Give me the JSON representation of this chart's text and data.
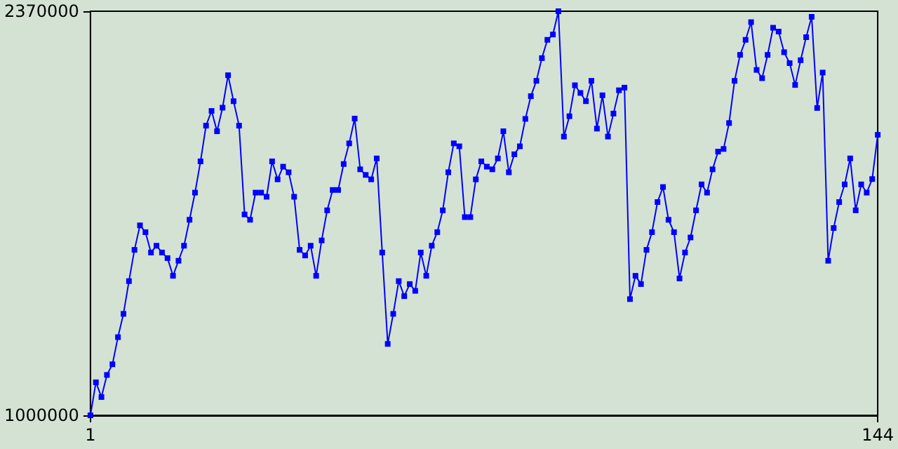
{
  "chart_data": {
    "type": "line",
    "x": [
      1,
      2,
      3,
      4,
      5,
      6,
      7,
      8,
      9,
      10,
      11,
      12,
      13,
      14,
      15,
      16,
      17,
      18,
      19,
      20,
      21,
      22,
      23,
      24,
      25,
      26,
      27,
      28,
      29,
      30,
      31,
      32,
      33,
      34,
      35,
      36,
      37,
      38,
      39,
      40,
      41,
      42,
      43,
      44,
      45,
      46,
      47,
      48,
      49,
      50,
      51,
      52,
      53,
      54,
      55,
      56,
      57,
      58,
      59,
      60,
      61,
      62,
      63,
      64,
      65,
      66,
      67,
      68,
      69,
      70,
      71,
      72,
      73,
      74,
      75,
      76,
      77,
      78,
      79,
      80,
      81,
      82,
      83,
      84,
      85,
      86,
      87,
      88,
      89,
      90,
      91,
      92,
      93,
      94,
      95,
      96,
      97,
      98,
      99,
      100,
      101,
      102,
      103,
      104,
      105,
      106,
      107,
      108,
      109,
      110,
      111,
      112,
      113,
      114,
      115,
      116,
      117,
      118,
      119,
      120,
      121,
      122,
      123,
      124,
      125,
      126,
      127,
      128,
      129,
      130,
      131,
      132,
      133,
      134,
      135,
      136,
      137,
      138,
      139,
      140,
      141,
      142,
      143,
      144
    ],
    "series": [
      {
        "color": "#0000ff",
        "values": [
          1000000,
          1112000,
          1062000,
          1137000,
          1173000,
          1265000,
          1344000,
          1455000,
          1561000,
          1644000,
          1621000,
          1552000,
          1575000,
          1552000,
          1533000,
          1473000,
          1524000,
          1575000,
          1663000,
          1755000,
          1861000,
          1982000,
          2032000,
          1963000,
          2043000,
          2153000,
          2065000,
          1982000,
          1681000,
          1663000,
          1755000,
          1755000,
          1741000,
          1861000,
          1800000,
          1843000,
          1824000,
          1741000,
          1561000,
          1542000,
          1575000,
          1473000,
          1593000,
          1695000,
          1764000,
          1764000,
          1852000,
          1922000,
          2006000,
          1834000,
          1815000,
          1800000,
          1871000,
          1552000,
          1242000,
          1344000,
          1455000,
          1404000,
          1445000,
          1422000,
          1552000,
          1473000,
          1575000,
          1621000,
          1695000,
          1824000,
          1922000,
          1912000,
          1672000,
          1672000,
          1800000,
          1861000,
          1843000,
          1834000,
          1871000,
          1963000,
          1824000,
          1885000,
          1912000,
          2005000,
          2082000,
          2134000,
          2211000,
          2273000,
          2291000,
          2370000,
          1945000,
          2014000,
          2119000,
          2093000,
          2065000,
          2134000,
          1972000,
          2085000,
          1945000,
          2023000,
          2102000,
          2111000,
          1394000,
          1473000,
          1445000,
          1561000,
          1621000,
          1723000,
          1774000,
          1663000,
          1621000,
          1464000,
          1552000,
          1603000,
          1695000,
          1783000,
          1755000,
          1834000,
          1894000,
          1903000,
          1991000,
          2134000,
          2222000,
          2273000,
          2333000,
          2171000,
          2143000,
          2222000,
          2314000,
          2301000,
          2231000,
          2194000,
          2120000,
          2204000,
          2282000,
          2351000,
          2042000,
          2162000,
          1524000,
          1635000,
          1723000,
          1783000,
          1871000,
          1695000,
          1783000,
          1755000,
          1801000,
          1951000
        ]
      }
    ],
    "xlim": [
      1,
      144
    ],
    "xticks": [
      1,
      144
    ],
    "ylim": [
      1000000,
      2370000
    ],
    "yticks": [
      1000000,
      2370000
    ],
    "grid": false,
    "marker": "square",
    "line_style": "solid"
  }
}
